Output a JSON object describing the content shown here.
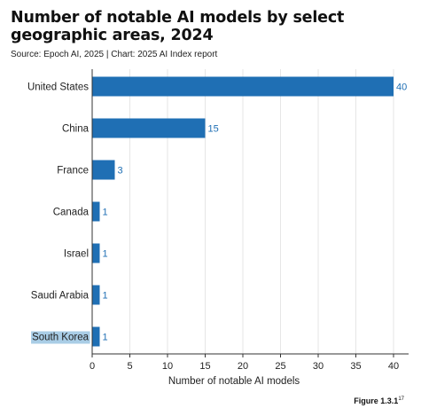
{
  "header": {
    "title": "Number of notable AI models by select geographic areas, 2024",
    "subtitle": "Source: Epoch AI, 2025 | Chart: 2025 AI Index report",
    "figure": "Figure 1.3.1",
    "figure_note": "17"
  },
  "colors": {
    "bar": "#1f6fb4",
    "data_label": "#1f6fb4",
    "grid": "#e6e6e6",
    "axis": "#333333",
    "highlight": "#a9cde6"
  },
  "chart_data": {
    "type": "bar",
    "orientation": "horizontal",
    "title": "Number of notable AI models by select geographic areas, 2024",
    "xlabel": "Number of notable AI models",
    "ylabel": "",
    "categories": [
      "United States",
      "China",
      "France",
      "Canada",
      "Israel",
      "Saudi Arabia",
      "South Korea"
    ],
    "values": [
      40,
      15,
      3,
      1,
      1,
      1,
      1
    ],
    "data_labels": [
      "40",
      "15",
      "3",
      "1",
      "1",
      "1",
      "1"
    ],
    "xlim": [
      0,
      40
    ],
    "xticks": [
      0,
      5,
      10,
      15,
      20,
      25,
      30,
      35,
      40
    ],
    "highlighted_category": "South Korea",
    "grid": true
  }
}
